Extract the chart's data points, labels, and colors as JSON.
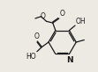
{
  "bg_color": "#ede9e3",
  "line_color": "#1a1a1a",
  "lw": 0.9,
  "figsize": [
    1.11,
    0.82
  ],
  "dpi": 100,
  "xlim": [
    0,
    11
  ],
  "ylim": [
    0,
    8.2
  ]
}
